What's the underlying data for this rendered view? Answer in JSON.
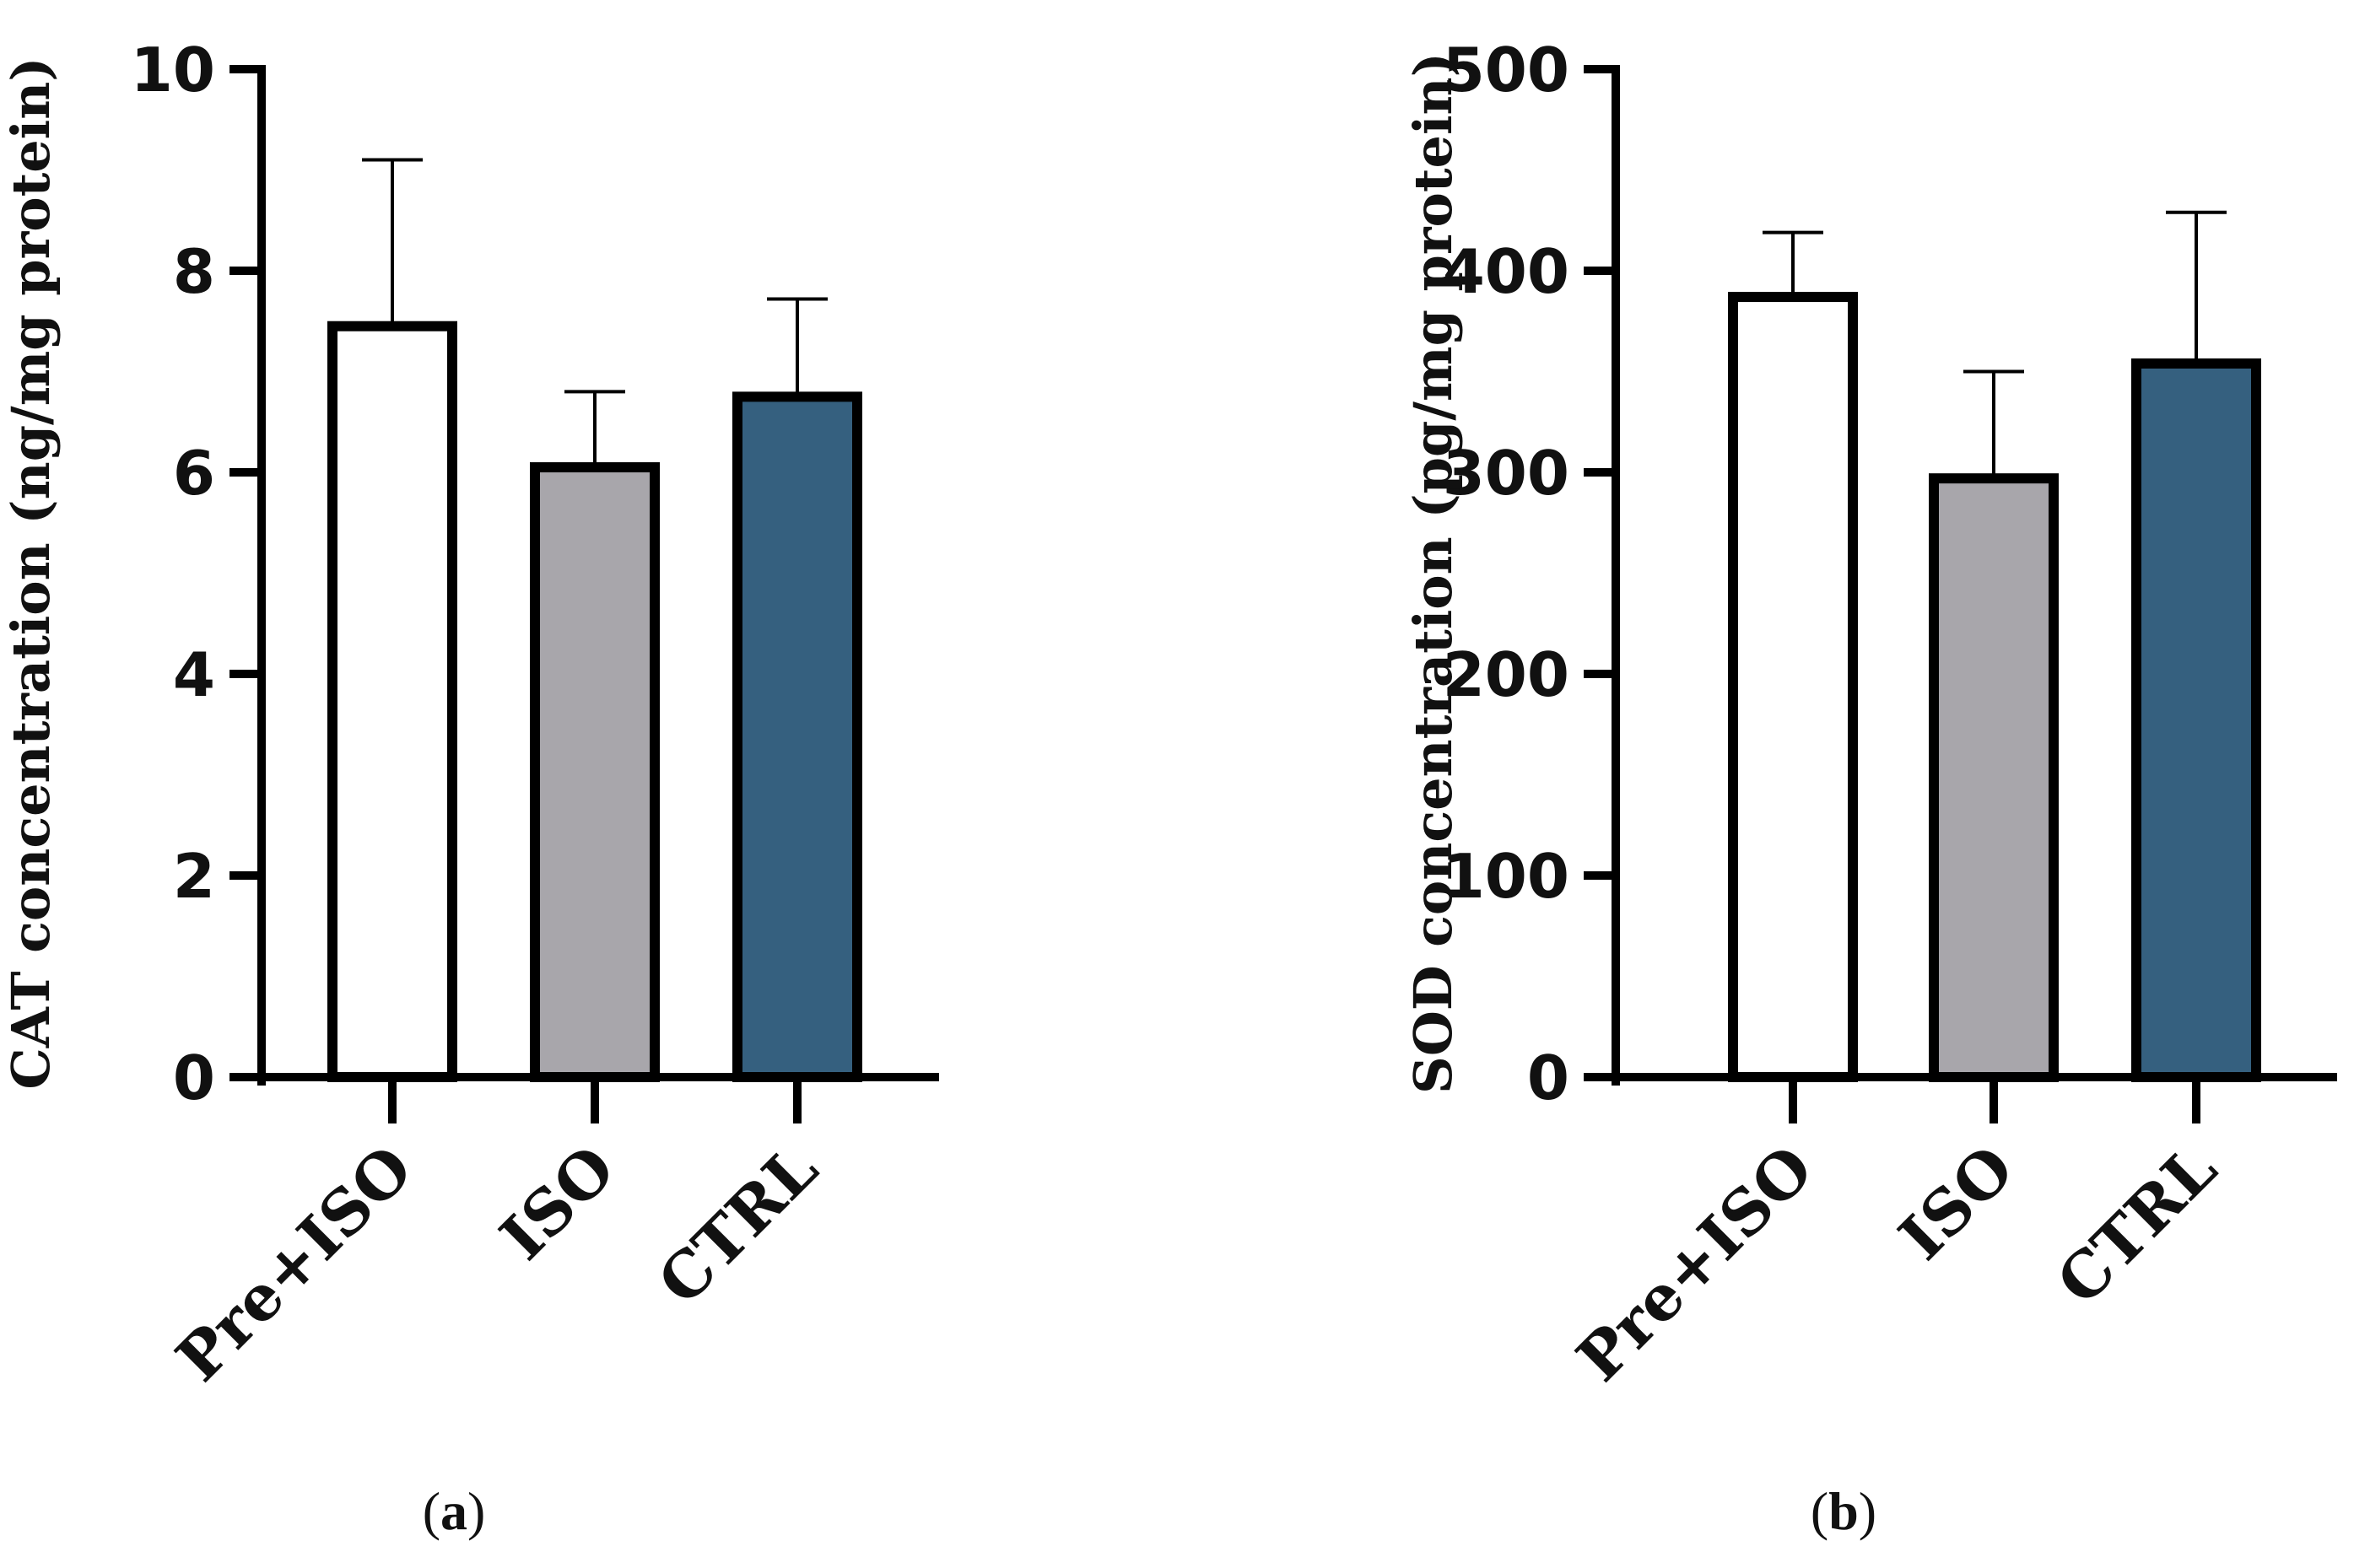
{
  "chart_data": [
    {
      "type": "bar",
      "panel": "a",
      "title": "",
      "xlabel": "",
      "ylabel": "CAT concentration (ng/mg protein)",
      "categories": [
        "Pre+ISO",
        "ISO",
        "CTRL"
      ],
      "values": [
        7.45,
        6.05,
        6.75
      ],
      "errors": [
        1.65,
        0.75,
        0.97
      ],
      "colors": [
        "#ffffff",
        "#a8a6ab",
        "#35607f"
      ],
      "ylim": [
        0,
        10
      ],
      "yticks": [
        0,
        2,
        4,
        6,
        8,
        10
      ],
      "ytick_labels": [
        "0",
        "2",
        "4",
        "6",
        "8",
        "10"
      ],
      "grid": false,
      "panel_label": {
        "open": "(",
        "letter": "a",
        "close": ")"
      }
    },
    {
      "type": "bar",
      "panel": "b",
      "title": "",
      "xlabel": "",
      "ylabel": "SOD concentration (pg/mg protein)",
      "categories": [
        "Pre+ISO",
        "ISO",
        "CTRL"
      ],
      "values": [
        387,
        297,
        354
      ],
      "errors": [
        32,
        53,
        75
      ],
      "colors": [
        "#ffffff",
        "#a8a6ab",
        "#35607f"
      ],
      "ylim": [
        0,
        500
      ],
      "yticks": [
        0,
        100,
        200,
        300,
        400,
        500
      ],
      "ytick_labels": [
        "0",
        "100",
        "200",
        "300",
        "400",
        "500"
      ],
      "grid": false,
      "panel_label": {
        "open": "(",
        "letter": "b",
        "close": ")"
      }
    }
  ]
}
